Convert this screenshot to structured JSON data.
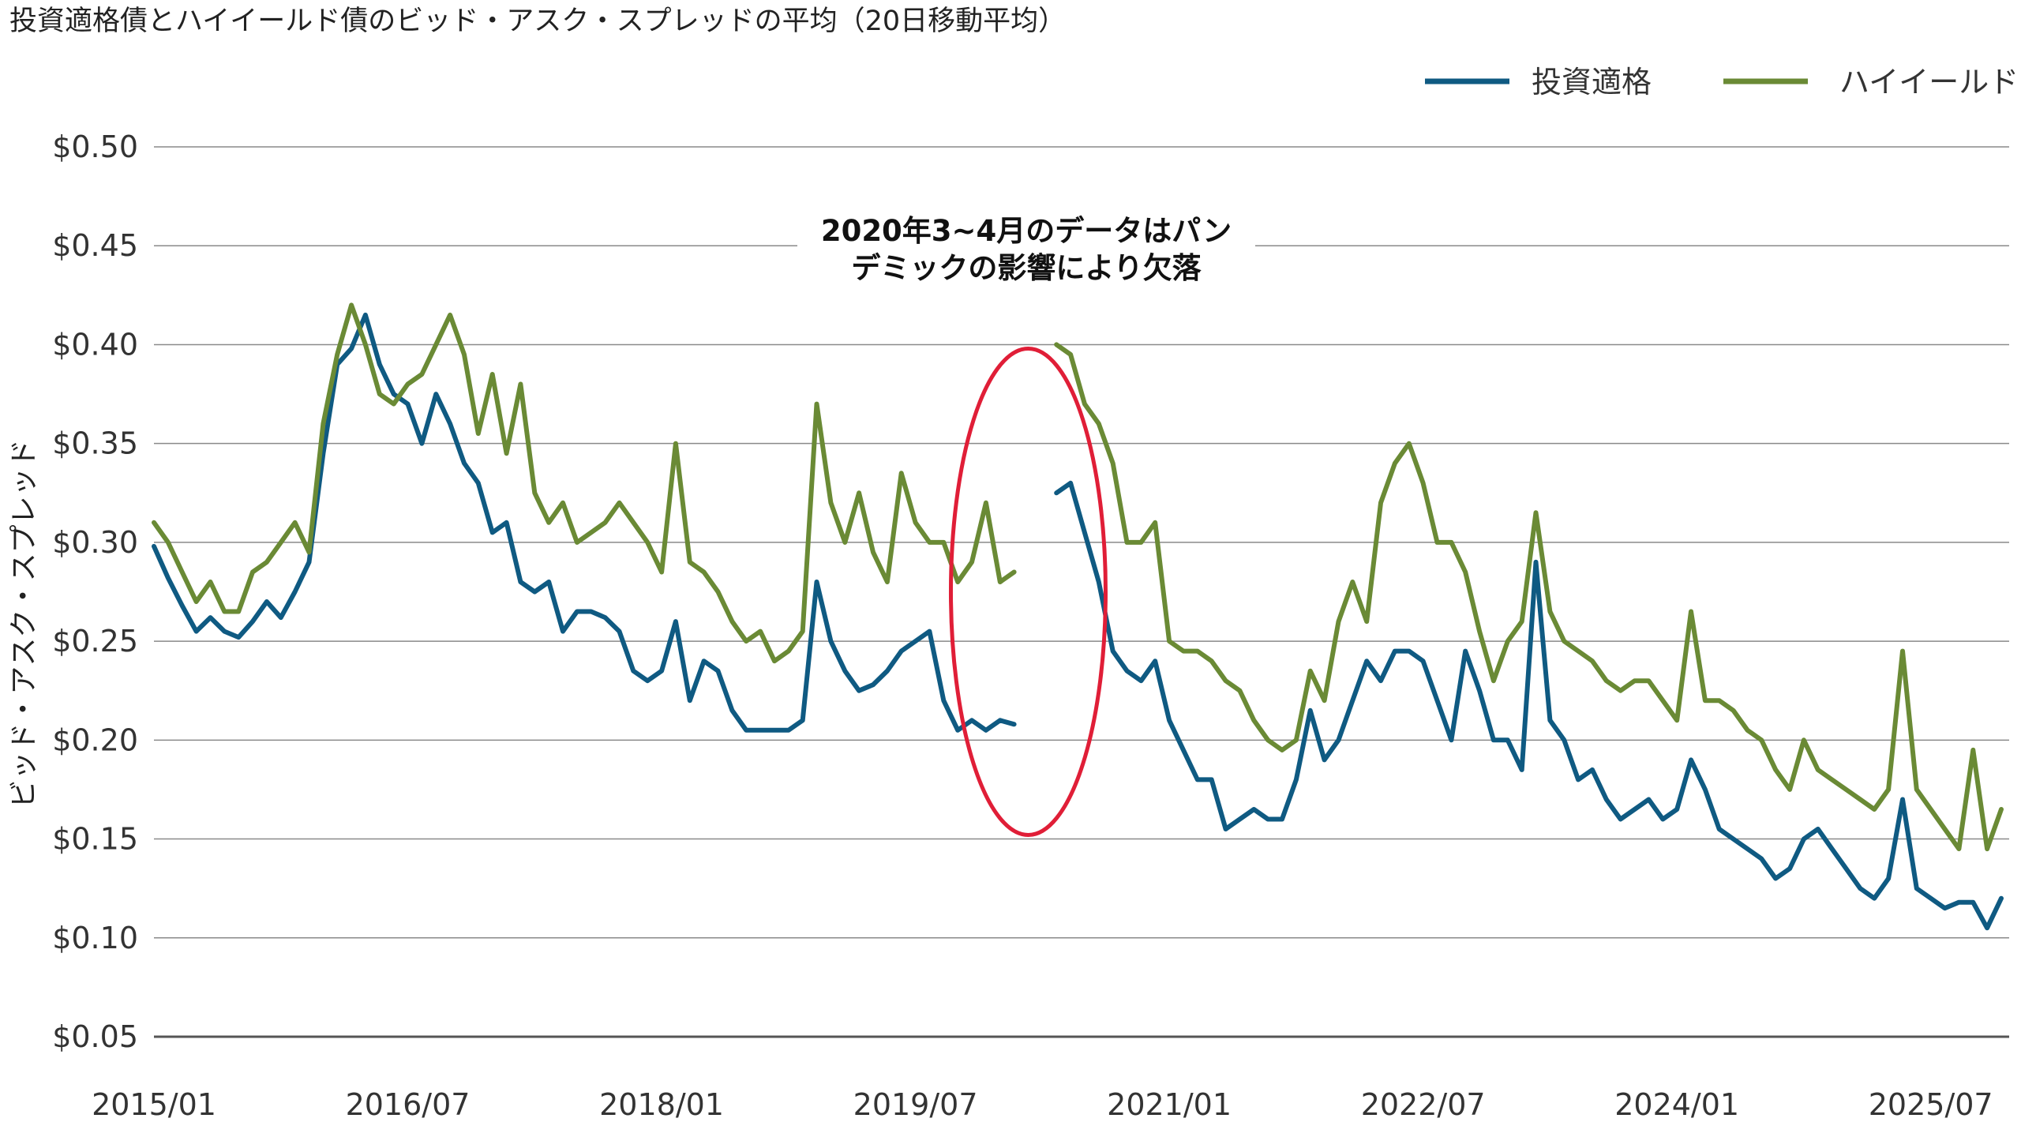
{
  "chart_data": {
    "type": "line",
    "title": "投資適格債とハイイールド債のビッド・アスク・スプレッドの平均（20日移動平均）",
    "ylabel": "ビッド・アスク・スプレッド",
    "xlabel": "",
    "ylim": [
      0.05,
      0.5
    ],
    "xlim": [
      "2015-01",
      "2025-12"
    ],
    "yticks": [
      "$0.50",
      "$0.45",
      "$0.40",
      "$0.35",
      "$0.30",
      "$0.25",
      "$0.20",
      "$0.15",
      "$0.10",
      "$0.05"
    ],
    "ytick_values": [
      0.5,
      0.45,
      0.4,
      0.35,
      0.3,
      0.25,
      0.2,
      0.15,
      0.1,
      0.05
    ],
    "xticks": [
      "2015/01",
      "2016/07",
      "2018/01",
      "2019/07",
      "2021/01",
      "2022/07",
      "2024/01",
      "2025/07"
    ],
    "xtick_values": [
      "2015-01",
      "2016-07",
      "2018-01",
      "2019-07",
      "2021-01",
      "2022-07",
      "2024-01",
      "2025-07"
    ],
    "grid": true,
    "legend_position": "top-right",
    "annotation": {
      "lines": [
        "2020年3~4月のデータはパン",
        "デミックの影響により欠落"
      ],
      "circle_x": "2020-03",
      "circle_y": 0.275
    },
    "series": [
      {
        "name": "投資適格",
        "color": "#0f5a82",
        "points": [
          [
            "2015-01",
            0.298
          ],
          [
            "2015-02",
            0.282
          ],
          [
            "2015-03",
            0.268
          ],
          [
            "2015-04",
            0.255
          ],
          [
            "2015-05",
            0.262
          ],
          [
            "2015-06",
            0.255
          ],
          [
            "2015-07",
            0.252
          ],
          [
            "2015-08",
            0.26
          ],
          [
            "2015-09",
            0.27
          ],
          [
            "2015-10",
            0.262
          ],
          [
            "2015-11",
            0.275
          ],
          [
            "2015-12",
            0.29
          ],
          [
            "2016-01",
            0.345
          ],
          [
            "2016-02",
            0.39
          ],
          [
            "2016-03",
            0.398
          ],
          [
            "2016-04",
            0.415
          ],
          [
            "2016-05",
            0.39
          ],
          [
            "2016-06",
            0.375
          ],
          [
            "2016-07",
            0.37
          ],
          [
            "2016-08",
            0.35
          ],
          [
            "2016-09",
            0.375
          ],
          [
            "2016-10",
            0.36
          ],
          [
            "2016-11",
            0.34
          ],
          [
            "2016-12",
            0.33
          ],
          [
            "2017-01",
            0.305
          ],
          [
            "2017-02",
            0.31
          ],
          [
            "2017-03",
            0.28
          ],
          [
            "2017-04",
            0.275
          ],
          [
            "2017-05",
            0.28
          ],
          [
            "2017-06",
            0.255
          ],
          [
            "2017-07",
            0.265
          ],
          [
            "2017-08",
            0.265
          ],
          [
            "2017-09",
            0.262
          ],
          [
            "2017-10",
            0.255
          ],
          [
            "2017-11",
            0.235
          ],
          [
            "2017-12",
            0.23
          ],
          [
            "2018-01",
            0.235
          ],
          [
            "2018-02",
            0.26
          ],
          [
            "2018-03",
            0.22
          ],
          [
            "2018-04",
            0.24
          ],
          [
            "2018-05",
            0.235
          ],
          [
            "2018-06",
            0.215
          ],
          [
            "2018-07",
            0.205
          ],
          [
            "2018-08",
            0.205
          ],
          [
            "2018-09",
            0.205
          ],
          [
            "2018-10",
            0.205
          ],
          [
            "2018-11",
            0.21
          ],
          [
            "2018-12",
            0.28
          ],
          [
            "2019-01",
            0.25
          ],
          [
            "2019-02",
            0.235
          ],
          [
            "2019-03",
            0.225
          ],
          [
            "2019-04",
            0.228
          ],
          [
            "2019-05",
            0.235
          ],
          [
            "2019-06",
            0.245
          ],
          [
            "2019-07",
            0.25
          ],
          [
            "2019-08",
            0.255
          ],
          [
            "2019-09",
            0.22
          ],
          [
            "2019-10",
            0.205
          ],
          [
            "2019-11",
            0.21
          ],
          [
            "2019-12",
            0.205
          ],
          [
            "2020-01",
            0.21
          ],
          [
            "2020-02",
            0.208
          ],
          [
            "2020-05",
            0.325
          ],
          [
            "2020-06",
            0.33
          ],
          [
            "2020-07",
            0.305
          ],
          [
            "2020-08",
            0.28
          ],
          [
            "2020-09",
            0.245
          ],
          [
            "2020-10",
            0.235
          ],
          [
            "2020-11",
            0.23
          ],
          [
            "2020-12",
            0.24
          ],
          [
            "2021-01",
            0.21
          ],
          [
            "2021-02",
            0.195
          ],
          [
            "2021-03",
            0.18
          ],
          [
            "2021-04",
            0.18
          ],
          [
            "2021-05",
            0.155
          ],
          [
            "2021-06",
            0.16
          ],
          [
            "2021-07",
            0.165
          ],
          [
            "2021-08",
            0.16
          ],
          [
            "2021-09",
            0.16
          ],
          [
            "2021-10",
            0.18
          ],
          [
            "2021-11",
            0.215
          ],
          [
            "2021-12",
            0.19
          ],
          [
            "2022-01",
            0.2
          ],
          [
            "2022-02",
            0.22
          ],
          [
            "2022-03",
            0.24
          ],
          [
            "2022-04",
            0.23
          ],
          [
            "2022-05",
            0.245
          ],
          [
            "2022-06",
            0.245
          ],
          [
            "2022-07",
            0.24
          ],
          [
            "2022-08",
            0.22
          ],
          [
            "2022-09",
            0.2
          ],
          [
            "2022-10",
            0.245
          ],
          [
            "2022-11",
            0.225
          ],
          [
            "2022-12",
            0.2
          ],
          [
            "2023-01",
            0.2
          ],
          [
            "2023-02",
            0.185
          ],
          [
            "2023-03",
            0.29
          ],
          [
            "2023-04",
            0.21
          ],
          [
            "2023-05",
            0.2
          ],
          [
            "2023-06",
            0.18
          ],
          [
            "2023-07",
            0.185
          ],
          [
            "2023-08",
            0.17
          ],
          [
            "2023-09",
            0.16
          ],
          [
            "2023-10",
            0.165
          ],
          [
            "2023-11",
            0.17
          ],
          [
            "2023-12",
            0.16
          ],
          [
            "2024-01",
            0.165
          ],
          [
            "2024-02",
            0.19
          ],
          [
            "2024-03",
            0.175
          ],
          [
            "2024-04",
            0.155
          ],
          [
            "2024-05",
            0.15
          ],
          [
            "2024-06",
            0.145
          ],
          [
            "2024-07",
            0.14
          ],
          [
            "2024-08",
            0.13
          ],
          [
            "2024-09",
            0.135
          ],
          [
            "2024-10",
            0.15
          ],
          [
            "2024-11",
            0.155
          ],
          [
            "2024-12",
            0.145
          ],
          [
            "2025-01",
            0.135
          ],
          [
            "2025-02",
            0.125
          ],
          [
            "2025-03",
            0.12
          ],
          [
            "2025-04",
            0.13
          ],
          [
            "2025-05",
            0.17
          ],
          [
            "2025-06",
            0.125
          ],
          [
            "2025-07",
            0.12
          ],
          [
            "2025-08",
            0.115
          ],
          [
            "2025-09",
            0.118
          ],
          [
            "2025-10",
            0.118
          ],
          [
            "2025-11",
            0.105
          ],
          [
            "2025-12",
            0.12
          ]
        ]
      },
      {
        "name": "ハイイールド",
        "color": "#6a8a35",
        "points": [
          [
            "2015-01",
            0.31
          ],
          [
            "2015-02",
            0.3
          ],
          [
            "2015-03",
            0.285
          ],
          [
            "2015-04",
            0.27
          ],
          [
            "2015-05",
            0.28
          ],
          [
            "2015-06",
            0.265
          ],
          [
            "2015-07",
            0.265
          ],
          [
            "2015-08",
            0.285
          ],
          [
            "2015-09",
            0.29
          ],
          [
            "2015-10",
            0.3
          ],
          [
            "2015-11",
            0.31
          ],
          [
            "2015-12",
            0.295
          ],
          [
            "2016-01",
            0.36
          ],
          [
            "2016-02",
            0.395
          ],
          [
            "2016-03",
            0.42
          ],
          [
            "2016-04",
            0.4
          ],
          [
            "2016-05",
            0.375
          ],
          [
            "2016-06",
            0.37
          ],
          [
            "2016-07",
            0.38
          ],
          [
            "2016-08",
            0.385
          ],
          [
            "2016-09",
            0.4
          ],
          [
            "2016-10",
            0.415
          ],
          [
            "2016-11",
            0.395
          ],
          [
            "2016-12",
            0.355
          ],
          [
            "2017-01",
            0.385
          ],
          [
            "2017-02",
            0.345
          ],
          [
            "2017-03",
            0.38
          ],
          [
            "2017-04",
            0.325
          ],
          [
            "2017-05",
            0.31
          ],
          [
            "2017-06",
            0.32
          ],
          [
            "2017-07",
            0.3
          ],
          [
            "2017-08",
            0.305
          ],
          [
            "2017-09",
            0.31
          ],
          [
            "2017-10",
            0.32
          ],
          [
            "2017-11",
            0.31
          ],
          [
            "2017-12",
            0.3
          ],
          [
            "2018-01",
            0.285
          ],
          [
            "2018-02",
            0.35
          ],
          [
            "2018-03",
            0.29
          ],
          [
            "2018-04",
            0.285
          ],
          [
            "2018-05",
            0.275
          ],
          [
            "2018-06",
            0.26
          ],
          [
            "2018-07",
            0.25
          ],
          [
            "2018-08",
            0.255
          ],
          [
            "2018-09",
            0.24
          ],
          [
            "2018-10",
            0.245
          ],
          [
            "2018-11",
            0.255
          ],
          [
            "2018-12",
            0.37
          ],
          [
            "2019-01",
            0.32
          ],
          [
            "2019-02",
            0.3
          ],
          [
            "2019-03",
            0.325
          ],
          [
            "2019-04",
            0.295
          ],
          [
            "2019-05",
            0.28
          ],
          [
            "2019-06",
            0.335
          ],
          [
            "2019-07",
            0.31
          ],
          [
            "2019-08",
            0.3
          ],
          [
            "2019-09",
            0.3
          ],
          [
            "2019-10",
            0.28
          ],
          [
            "2019-11",
            0.29
          ],
          [
            "2019-12",
            0.32
          ],
          [
            "2020-01",
            0.28
          ],
          [
            "2020-02",
            0.285
          ],
          [
            "2020-05",
            0.4
          ],
          [
            "2020-06",
            0.395
          ],
          [
            "2020-07",
            0.37
          ],
          [
            "2020-08",
            0.36
          ],
          [
            "2020-09",
            0.34
          ],
          [
            "2020-10",
            0.3
          ],
          [
            "2020-11",
            0.3
          ],
          [
            "2020-12",
            0.31
          ],
          [
            "2021-01",
            0.25
          ],
          [
            "2021-02",
            0.245
          ],
          [
            "2021-03",
            0.245
          ],
          [
            "2021-04",
            0.24
          ],
          [
            "2021-05",
            0.23
          ],
          [
            "2021-06",
            0.225
          ],
          [
            "2021-07",
            0.21
          ],
          [
            "2021-08",
            0.2
          ],
          [
            "2021-09",
            0.195
          ],
          [
            "2021-10",
            0.2
          ],
          [
            "2021-11",
            0.235
          ],
          [
            "2021-12",
            0.22
          ],
          [
            "2022-01",
            0.26
          ],
          [
            "2022-02",
            0.28
          ],
          [
            "2022-03",
            0.26
          ],
          [
            "2022-04",
            0.32
          ],
          [
            "2022-05",
            0.34
          ],
          [
            "2022-06",
            0.35
          ],
          [
            "2022-07",
            0.33
          ],
          [
            "2022-08",
            0.3
          ],
          [
            "2022-09",
            0.3
          ],
          [
            "2022-10",
            0.285
          ],
          [
            "2022-11",
            0.255
          ],
          [
            "2022-12",
            0.23
          ],
          [
            "2023-01",
            0.25
          ],
          [
            "2023-02",
            0.26
          ],
          [
            "2023-03",
            0.315
          ],
          [
            "2023-04",
            0.265
          ],
          [
            "2023-05",
            0.25
          ],
          [
            "2023-06",
            0.245
          ],
          [
            "2023-07",
            0.24
          ],
          [
            "2023-08",
            0.23
          ],
          [
            "2023-09",
            0.225
          ],
          [
            "2023-10",
            0.23
          ],
          [
            "2023-11",
            0.23
          ],
          [
            "2023-12",
            0.22
          ],
          [
            "2024-01",
            0.21
          ],
          [
            "2024-02",
            0.265
          ],
          [
            "2024-03",
            0.22
          ],
          [
            "2024-04",
            0.22
          ],
          [
            "2024-05",
            0.215
          ],
          [
            "2024-06",
            0.205
          ],
          [
            "2024-07",
            0.2
          ],
          [
            "2024-08",
            0.185
          ],
          [
            "2024-09",
            0.175
          ],
          [
            "2024-10",
            0.2
          ],
          [
            "2024-11",
            0.185
          ],
          [
            "2024-12",
            0.18
          ],
          [
            "2025-01",
            0.175
          ],
          [
            "2025-02",
            0.17
          ],
          [
            "2025-03",
            0.165
          ],
          [
            "2025-04",
            0.175
          ],
          [
            "2025-05",
            0.245
          ],
          [
            "2025-06",
            0.175
          ],
          [
            "2025-07",
            0.165
          ],
          [
            "2025-08",
            0.155
          ],
          [
            "2025-09",
            0.145
          ],
          [
            "2025-10",
            0.195
          ],
          [
            "2025-11",
            0.145
          ],
          [
            "2025-12",
            0.165
          ]
        ]
      }
    ]
  }
}
